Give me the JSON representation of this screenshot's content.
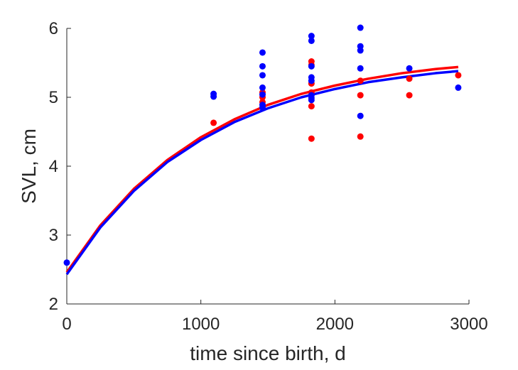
{
  "chart_data": {
    "type": "scatter",
    "title": "",
    "xlabel": "time since birth, d",
    "ylabel": "SVL, cm",
    "xlim": [
      0,
      3000
    ],
    "ylim": [
      2,
      6
    ],
    "xticks": [
      0,
      1000,
      2000,
      3000
    ],
    "yticks": [
      2,
      3,
      4,
      5,
      6
    ],
    "xtick_labels": [
      "0",
      "1000",
      "2000",
      "3000"
    ],
    "ytick_labels": [
      "2",
      "3",
      "4",
      "5",
      "6"
    ],
    "grid": false,
    "legend": "none",
    "series": [
      {
        "kind": "points",
        "color": "#ff0000",
        "x": [
          1095,
          1460,
          1460,
          1460,
          1825,
          1825,
          1825,
          1825,
          1825,
          1825,
          2190,
          2190,
          2190,
          2555,
          2555,
          2920
        ],
        "y": [
          4.63,
          5.07,
          5.0,
          4.93,
          5.52,
          5.2,
          5.07,
          4.87,
          4.4,
          5.47,
          5.24,
          5.03,
          4.43,
          5.27,
          5.03,
          5.32
        ]
      },
      {
        "kind": "points",
        "color": "#0000ff",
        "x": [
          0,
          1095,
          1095,
          1460,
          1460,
          1460,
          1460,
          1460,
          1460,
          1460,
          1825,
          1825,
          1825,
          1825,
          1825,
          1825,
          1825,
          1825,
          2190,
          2190,
          2190,
          2190,
          2190,
          2555,
          2920
        ],
        "y": [
          2.6,
          5.05,
          5.01,
          5.65,
          5.45,
          5.32,
          5.14,
          5.04,
          4.89,
          4.85,
          5.89,
          5.82,
          5.45,
          5.29,
          5.24,
          5.03,
          4.99,
          4.96,
          6.01,
          5.74,
          5.68,
          5.42,
          4.73,
          5.42,
          5.14
        ]
      },
      {
        "kind": "curve",
        "color": "#ff0000",
        "x": [
          0,
          250,
          500,
          750,
          1000,
          1250,
          1500,
          1750,
          2000,
          2250,
          2500,
          2750,
          2920
        ],
        "y": [
          2.46,
          3.14,
          3.67,
          4.09,
          4.42,
          4.68,
          4.89,
          5.05,
          5.17,
          5.27,
          5.35,
          5.41,
          5.44
        ]
      },
      {
        "kind": "curve",
        "color": "#0000ff",
        "x": [
          0,
          250,
          500,
          750,
          1000,
          1250,
          1500,
          1750,
          2000,
          2250,
          2500,
          2750,
          2920
        ],
        "y": [
          2.43,
          3.11,
          3.64,
          4.06,
          4.38,
          4.64,
          4.84,
          5.0,
          5.12,
          5.22,
          5.29,
          5.35,
          5.38
        ]
      }
    ]
  }
}
